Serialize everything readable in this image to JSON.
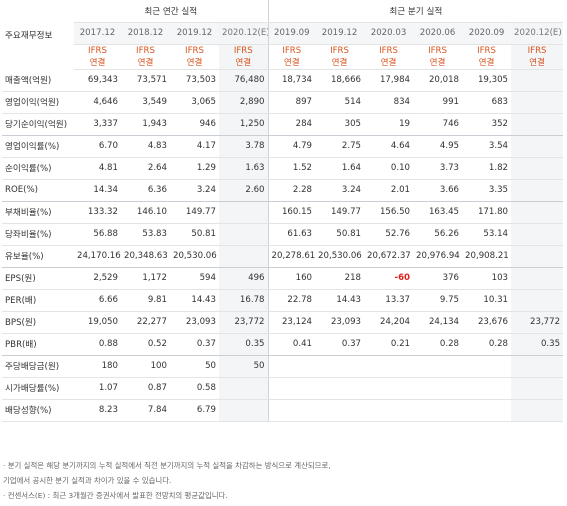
{
  "header": {
    "label": "주요재무정보",
    "annual_title": "최근 연간 실적",
    "quarter_title": "최근 분기 실적"
  },
  "periods": {
    "annual": [
      "2017.12",
      "2018.12",
      "2019.12",
      "2020.12(E)"
    ],
    "quarter": [
      "2019.09",
      "2019.12",
      "2020.03",
      "2020.06",
      "2020.09",
      "2020.12(E)"
    ]
  },
  "ifrs": {
    "line1": "IFRS",
    "line2": "연결"
  },
  "rows": [
    {
      "label": "매출액(억원)",
      "annual": [
        "69,343",
        "73,571",
        "73,503",
        "76,480"
      ],
      "quarter": [
        "18,734",
        "18,666",
        "17,984",
        "20,018",
        "19,305",
        ""
      ]
    },
    {
      "label": "영업이익(억원)",
      "annual": [
        "4,646",
        "3,549",
        "3,065",
        "2,890"
      ],
      "quarter": [
        "897",
        "514",
        "834",
        "991",
        "683",
        ""
      ]
    },
    {
      "label": "당기순이익(억원)",
      "annual": [
        "3,337",
        "1,943",
        "946",
        "1,250"
      ],
      "quarter": [
        "284",
        "305",
        "19",
        "746",
        "352",
        ""
      ]
    },
    {
      "label": "영업이익률(%)",
      "annual": [
        "6.70",
        "4.83",
        "4.17",
        "3.78"
      ],
      "quarter": [
        "4.79",
        "2.75",
        "4.64",
        "4.95",
        "3.54",
        ""
      ]
    },
    {
      "label": "순이익률(%)",
      "annual": [
        "4.81",
        "2.64",
        "1.29",
        "1.63"
      ],
      "quarter": [
        "1.52",
        "1.64",
        "0.10",
        "3.73",
        "1.82",
        ""
      ]
    },
    {
      "label": "ROE(%)",
      "annual": [
        "14.34",
        "6.36",
        "3.24",
        "2.60"
      ],
      "quarter": [
        "2.28",
        "3.24",
        "2.01",
        "3.66",
        "3.35",
        ""
      ]
    },
    {
      "label": "부채비율(%)",
      "annual": [
        "133.32",
        "146.10",
        "149.77",
        ""
      ],
      "quarter": [
        "160.15",
        "149.77",
        "156.50",
        "163.45",
        "171.80",
        ""
      ]
    },
    {
      "label": "당좌비율(%)",
      "annual": [
        "56.88",
        "53.83",
        "50.81",
        ""
      ],
      "quarter": [
        "61.63",
        "50.81",
        "52.76",
        "56.26",
        "53.14",
        ""
      ]
    },
    {
      "label": "유보율(%)",
      "annual": [
        "24,170.16",
        "20,348.63",
        "20,530.06",
        ""
      ],
      "quarter": [
        "20,278.61",
        "20,530.06",
        "20,672.37",
        "20,976.94",
        "20,908.21",
        ""
      ]
    },
    {
      "label": "EPS(원)",
      "annual": [
        "2,529",
        "1,172",
        "594",
        "496"
      ],
      "quarter": [
        "160",
        "218",
        "-60",
        "376",
        "103",
        ""
      ]
    },
    {
      "label": "PER(배)",
      "annual": [
        "6.66",
        "9.81",
        "14.43",
        "16.78"
      ],
      "quarter": [
        "22.78",
        "14.43",
        "13.37",
        "9.75",
        "10.31",
        ""
      ]
    },
    {
      "label": "BPS(원)",
      "annual": [
        "19,050",
        "22,277",
        "23,093",
        "23,772"
      ],
      "quarter": [
        "23,124",
        "23,093",
        "24,204",
        "24,134",
        "23,676",
        "23,772"
      ]
    },
    {
      "label": "PBR(배)",
      "annual": [
        "0.88",
        "0.52",
        "0.37",
        "0.35"
      ],
      "quarter": [
        "0.41",
        "0.37",
        "0.21",
        "0.28",
        "0.28",
        "0.35"
      ]
    },
    {
      "label": "주당배당금(원)",
      "annual": [
        "180",
        "100",
        "50",
        "50"
      ],
      "quarter": [
        "",
        "",
        "",
        "",
        "",
        ""
      ]
    },
    {
      "label": "시가배당률(%)",
      "annual": [
        "1.07",
        "0.87",
        "0.58",
        ""
      ],
      "quarter": [
        "",
        "",
        "",
        "",
        "",
        ""
      ]
    },
    {
      "label": "배당성향(%)",
      "annual": [
        "8.23",
        "7.84",
        "6.79",
        ""
      ],
      "quarter": [
        "",
        "",
        "",
        "",
        "",
        ""
      ]
    }
  ],
  "notes": [
    "· 분기 실적은 해당 분기까지의 누적 실적에서 직전 분기까지의 누적 실적을 차감하는 방식으로 계산되므로,",
    "  기업에서 공시한 분기 실적과 차이가 있을 수 있습니다.",
    "· 컨센서스(E) : 최근 3개월간 증권사에서 발표한 전망치의 평균값입니다."
  ],
  "colors": {
    "ifrs": "#d9541e",
    "negative": "#e0201b",
    "estimate_bg": "#f4f5f7"
  }
}
